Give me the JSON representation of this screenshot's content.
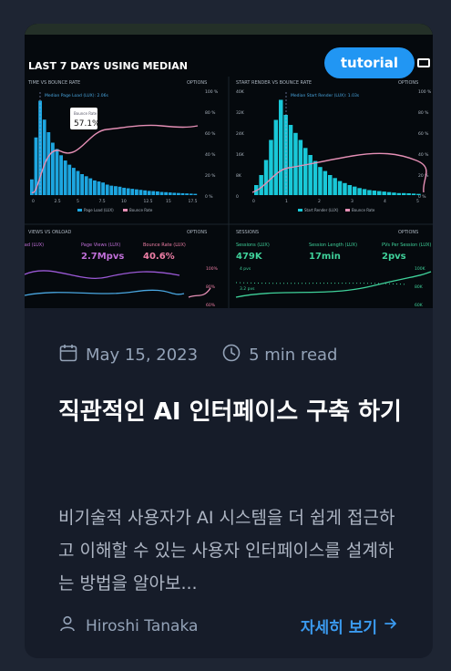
{
  "card": {
    "tag": "tutorial",
    "date": "May 15, 2023",
    "read_time": "5 min read",
    "title": "직관적인 AI 인터페이스 구축 하기",
    "excerpt": "비기술적 사용자가 AI 시스템을 더 쉽게 접근하고 이해할 수 있는 사용자 인터페이스를 설계하는 방법을 알아보...",
    "author": "Hiroshi Tanaka",
    "more_label": "자세히 보기"
  },
  "hero_dashboard": {
    "header": "LAST 7 DAYS USING MEDIAN",
    "panel_left_title": "TIME VS BOUNCE RATE",
    "panel_right_title": "START RENDER VS BOUNCE RATE",
    "options_label": "OPTIONS",
    "left_annotation": "Median Page Load (LUX): 2.06s",
    "right_annotation": "Median Start Render (LUX): 1.03s",
    "tooltip_label": "Bounce Rate",
    "tooltip_value": "57.1%",
    "legend_a": "Page Load (LUX)",
    "legend_b": "Bounce Rate",
    "legend_c": "Start Render (LUX)",
    "right_ylabels": [
      "40K",
      "32K",
      "24K",
      "16K",
      "8K",
      "0"
    ],
    "pct_labels": [
      "100 %",
      "80 %",
      "60 %",
      "40 %",
      "20 %",
      "0 %"
    ],
    "left_xlabels": [
      "0",
      "2.5",
      "5",
      "7.5",
      "10",
      "12.5",
      "15",
      "17.5"
    ],
    "right_xlabels": [
      "0",
      "1",
      "2",
      "3",
      "4",
      "5"
    ],
    "lower_left_title": "VIEWS VS ONLOAD",
    "lower_right_title": "SESSIONS",
    "stats_left": [
      {
        "label": "Load (LUX)",
        "value": ""
      },
      {
        "label": "Page Views (LUX)",
        "value": "2.7Mpvs"
      },
      {
        "label": "Bounce Rate (LUX)",
        "value": "40.6%"
      }
    ],
    "stats_right": [
      {
        "label": "Sessions (LUX)",
        "value": "479K"
      },
      {
        "label": "Session Length (LUX)",
        "value": "17min"
      },
      {
        "label": "PVs Per Session (LUX)",
        "value": "2pvs"
      }
    ],
    "lower_left_labels": [
      "100%",
      "80%",
      "60%"
    ],
    "lower_right_labels": [
      "4 pvs",
      "3.2 pvs",
      "100K",
      "80K",
      "60K"
    ],
    "colors": {
      "bars": "#1da6e0",
      "bars_right": "#19c8d8",
      "line": "#e58fb5",
      "accent": "#2196f3"
    }
  }
}
